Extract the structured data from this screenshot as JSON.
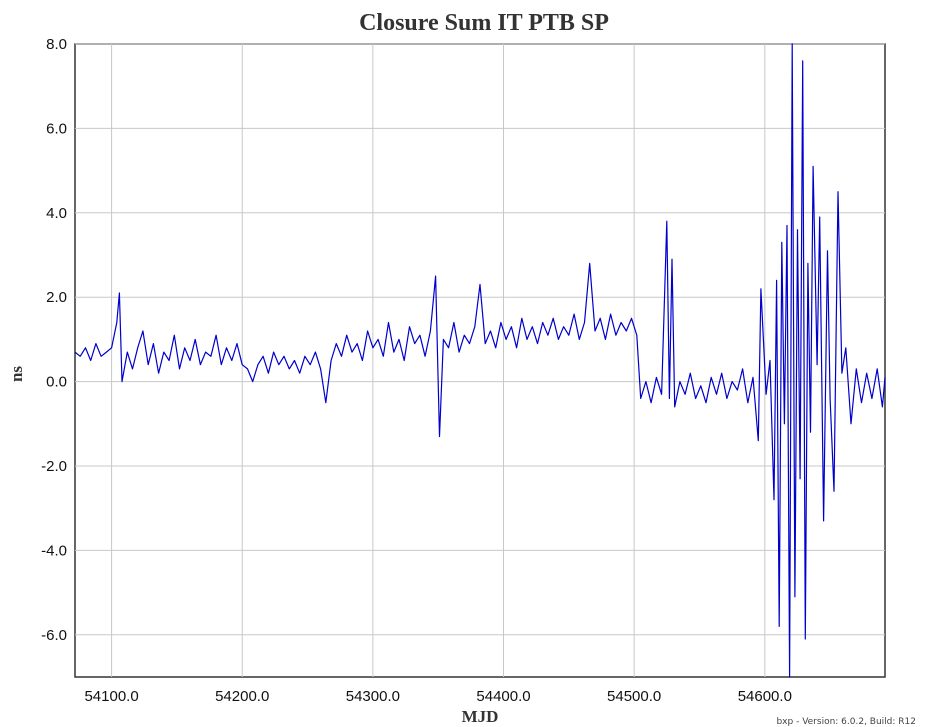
{
  "chart_data": {
    "type": "line",
    "title": "Closure Sum IT  PTB  SP",
    "xlabel": "MJD",
    "ylabel": "ns",
    "xlim": [
      54072,
      54692
    ],
    "ylim": [
      -7.0,
      8.0
    ],
    "x_ticks": [
      54100,
      54200,
      54300,
      54400,
      54500,
      54600
    ],
    "x_tick_labels": [
      "54100.0",
      "54200.0",
      "54300.0",
      "54400.0",
      "54500.0",
      "54600.0"
    ],
    "y_ticks": [
      -6,
      -4,
      -2,
      0,
      2,
      4,
      6,
      8
    ],
    "y_tick_labels": [
      "-6.0",
      "-4.0",
      "-2.0",
      "0.0",
      "2.0",
      "4.0",
      "6.0",
      "8.0"
    ],
    "grid": true,
    "series": [
      {
        "color": "#0000cc",
        "values": [
          [
            54072,
            0.7
          ],
          [
            54076,
            0.6
          ],
          [
            54080,
            0.8
          ],
          [
            54084,
            0.5
          ],
          [
            54088,
            0.9
          ],
          [
            54092,
            0.6
          ],
          [
            54096,
            0.7
          ],
          [
            54100,
            0.8
          ],
          [
            54104,
            1.4
          ],
          [
            54106,
            2.1
          ],
          [
            54108,
            0.0
          ],
          [
            54112,
            0.7
          ],
          [
            54116,
            0.3
          ],
          [
            54120,
            0.8
          ],
          [
            54124,
            1.2
          ],
          [
            54128,
            0.4
          ],
          [
            54132,
            0.9
          ],
          [
            54136,
            0.2
          ],
          [
            54140,
            0.7
          ],
          [
            54144,
            0.5
          ],
          [
            54148,
            1.1
          ],
          [
            54152,
            0.3
          ],
          [
            54156,
            0.8
          ],
          [
            54160,
            0.5
          ],
          [
            54164,
            1.0
          ],
          [
            54168,
            0.4
          ],
          [
            54172,
            0.7
          ],
          [
            54176,
            0.6
          ],
          [
            54180,
            1.1
          ],
          [
            54184,
            0.4
          ],
          [
            54188,
            0.8
          ],
          [
            54192,
            0.5
          ],
          [
            54196,
            0.9
          ],
          [
            54200,
            0.4
          ],
          [
            54204,
            0.3
          ],
          [
            54208,
            0.0
          ],
          [
            54212,
            0.4
          ],
          [
            54216,
            0.6
          ],
          [
            54220,
            0.2
          ],
          [
            54224,
            0.7
          ],
          [
            54228,
            0.4
          ],
          [
            54232,
            0.6
          ],
          [
            54236,
            0.3
          ],
          [
            54240,
            0.5
          ],
          [
            54244,
            0.2
          ],
          [
            54248,
            0.6
          ],
          [
            54252,
            0.4
          ],
          [
            54256,
            0.7
          ],
          [
            54260,
            0.3
          ],
          [
            54264,
            -0.5
          ],
          [
            54268,
            0.5
          ],
          [
            54272,
            0.9
          ],
          [
            54276,
            0.6
          ],
          [
            54280,
            1.1
          ],
          [
            54284,
            0.7
          ],
          [
            54288,
            0.9
          ],
          [
            54292,
            0.5
          ],
          [
            54296,
            1.2
          ],
          [
            54300,
            0.8
          ],
          [
            54304,
            1.0
          ],
          [
            54308,
            0.6
          ],
          [
            54312,
            1.4
          ],
          [
            54316,
            0.7
          ],
          [
            54320,
            1.0
          ],
          [
            54324,
            0.5
          ],
          [
            54328,
            1.3
          ],
          [
            54332,
            0.9
          ],
          [
            54336,
            1.1
          ],
          [
            54340,
            0.6
          ],
          [
            54344,
            1.2
          ],
          [
            54348,
            2.5
          ],
          [
            54351,
            -1.3
          ],
          [
            54354,
            1.0
          ],
          [
            54358,
            0.8
          ],
          [
            54362,
            1.4
          ],
          [
            54366,
            0.7
          ],
          [
            54370,
            1.1
          ],
          [
            54374,
            0.9
          ],
          [
            54378,
            1.3
          ],
          [
            54382,
            2.3
          ],
          [
            54386,
            0.9
          ],
          [
            54390,
            1.2
          ],
          [
            54394,
            0.8
          ],
          [
            54398,
            1.4
          ],
          [
            54402,
            1.0
          ],
          [
            54406,
            1.3
          ],
          [
            54410,
            0.8
          ],
          [
            54414,
            1.5
          ],
          [
            54418,
            1.0
          ],
          [
            54422,
            1.3
          ],
          [
            54426,
            0.9
          ],
          [
            54430,
            1.4
          ],
          [
            54434,
            1.1
          ],
          [
            54438,
            1.5
          ],
          [
            54442,
            1.0
          ],
          [
            54446,
            1.3
          ],
          [
            54450,
            1.1
          ],
          [
            54454,
            1.6
          ],
          [
            54458,
            1.0
          ],
          [
            54462,
            1.4
          ],
          [
            54466,
            2.8
          ],
          [
            54470,
            1.2
          ],
          [
            54474,
            1.5
          ],
          [
            54478,
            1.0
          ],
          [
            54482,
            1.6
          ],
          [
            54486,
            1.1
          ],
          [
            54490,
            1.4
          ],
          [
            54494,
            1.2
          ],
          [
            54498,
            1.5
          ],
          [
            54502,
            1.1
          ],
          [
            54505,
            -0.4
          ],
          [
            54509,
            0.0
          ],
          [
            54513,
            -0.5
          ],
          [
            54517,
            0.1
          ],
          [
            54521,
            -0.3
          ],
          [
            54525,
            3.8
          ],
          [
            54527,
            -0.4
          ],
          [
            54529,
            2.9
          ],
          [
            54531,
            -0.6
          ],
          [
            54535,
            0.0
          ],
          [
            54539,
            -0.3
          ],
          [
            54543,
            0.2
          ],
          [
            54547,
            -0.4
          ],
          [
            54551,
            -0.1
          ],
          [
            54555,
            -0.5
          ],
          [
            54559,
            0.1
          ],
          [
            54563,
            -0.3
          ],
          [
            54567,
            0.2
          ],
          [
            54571,
            -0.4
          ],
          [
            54575,
            0.0
          ],
          [
            54579,
            -0.2
          ],
          [
            54583,
            0.3
          ],
          [
            54587,
            -0.5
          ],
          [
            54591,
            0.1
          ],
          [
            54595,
            -1.4
          ],
          [
            54597,
            2.2
          ],
          [
            54601,
            -0.3
          ],
          [
            54604,
            0.5
          ],
          [
            54607,
            -2.8
          ],
          [
            54609,
            2.4
          ],
          [
            54611,
            -5.8
          ],
          [
            54613,
            3.3
          ],
          [
            54615,
            -1.0
          ],
          [
            54617,
            3.7
          ],
          [
            54619,
            -7.0
          ],
          [
            54621,
            8.0
          ],
          [
            54623,
            -5.1
          ],
          [
            54625,
            3.6
          ],
          [
            54627,
            -2.3
          ],
          [
            54629,
            7.6
          ],
          [
            54631,
            -6.1
          ],
          [
            54633,
            2.8
          ],
          [
            54635,
            -1.2
          ],
          [
            54637,
            5.1
          ],
          [
            54640,
            0.4
          ],
          [
            54642,
            3.9
          ],
          [
            54645,
            -3.3
          ],
          [
            54648,
            3.1
          ],
          [
            54650,
            -0.4
          ],
          [
            54653,
            -2.6
          ],
          [
            54656,
            4.5
          ],
          [
            54659,
            0.2
          ],
          [
            54662,
            0.8
          ],
          [
            54666,
            -1.0
          ],
          [
            54670,
            0.3
          ],
          [
            54674,
            -0.5
          ],
          [
            54678,
            0.2
          ],
          [
            54682,
            -0.4
          ],
          [
            54686,
            0.3
          ],
          [
            54690,
            -0.6
          ],
          [
            54692,
            0.1
          ]
        ]
      }
    ]
  },
  "footer": {
    "version_text": "bxp - Version: 6.0.2, Build: R12"
  }
}
